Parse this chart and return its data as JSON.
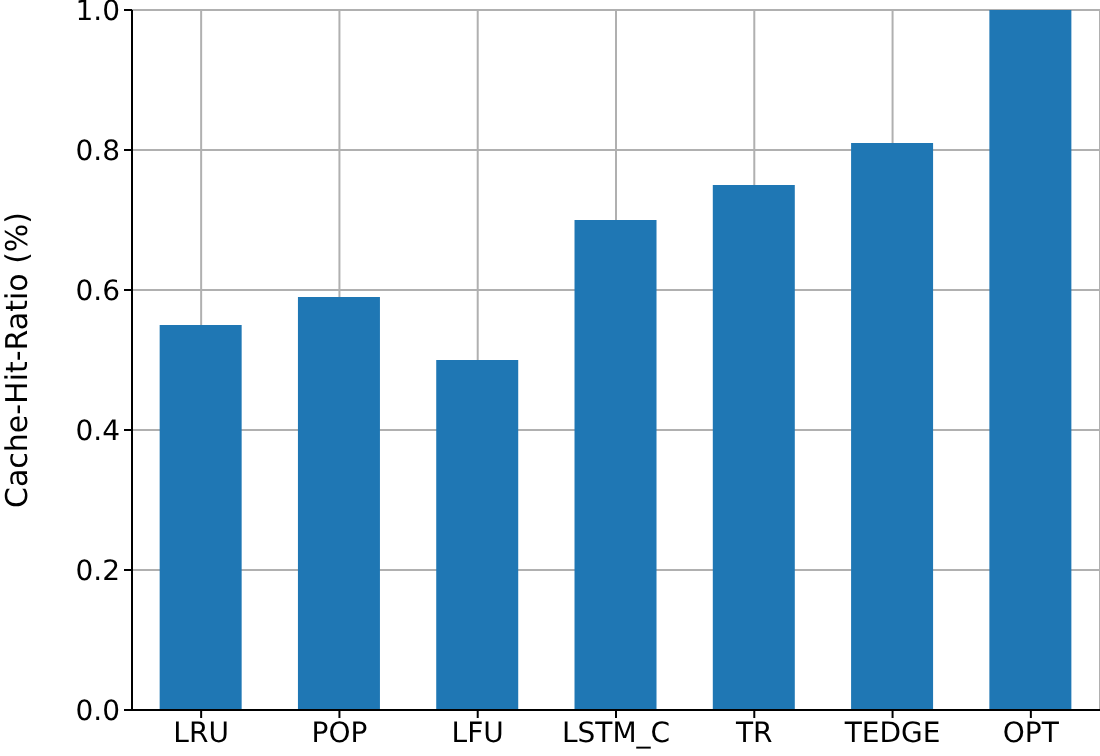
{
  "chart_data": {
    "type": "bar",
    "ylabel": "Cache-Hit-Ratio (%)",
    "categories": [
      "LRU",
      "POP",
      "LFU",
      "LSTM_C",
      "TR",
      "TEDGE",
      "OPT"
    ],
    "values": [
      0.55,
      0.59,
      0.5,
      0.7,
      0.75,
      0.81,
      1.0
    ],
    "color": "#1f77b4",
    "ylim": [
      0,
      1
    ],
    "yticks": [
      {
        "value": 0,
        "label": "0.0"
      },
      0.2,
      0.4,
      0.6,
      0.8,
      {
        "value": 1,
        "label": "1.0"
      }
    ],
    "grid": true
  }
}
